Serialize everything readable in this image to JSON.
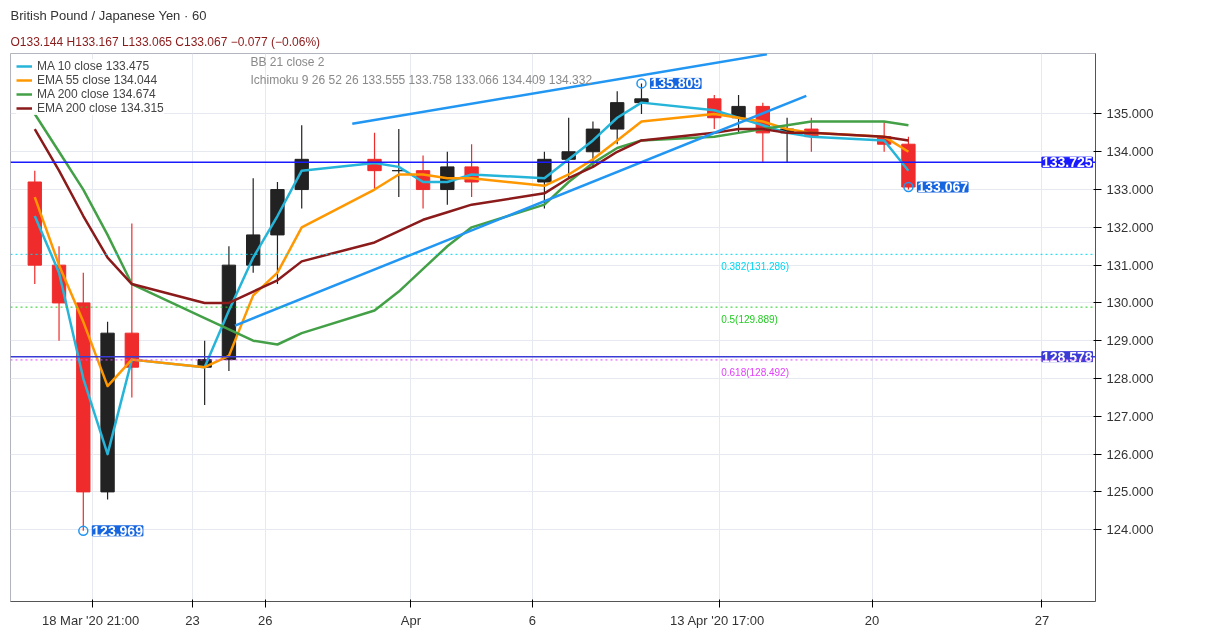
{
  "chart_data": {
    "type": "candlestick",
    "title": "British Pound / Japanese Yen · 60",
    "subtitle": "O133.144 H133.167 L133.065 C133.067 −0.077 (−0.06%)",
    "x": [
      "2020-03-16T12:00",
      "2020-03-17T12:00",
      "2020-03-18T12:00",
      "2020-03-19T12:00",
      "2020-03-20T12:00",
      "2020-03-23T12:00",
      "2020-03-24T12:00",
      "2020-03-25T12:00",
      "2020-03-26T12:00",
      "2020-03-27T12:00",
      "2020-03-30T12:00",
      "2020-03-31T12:00",
      "2020-04-01T12:00",
      "2020-04-02T12:00",
      "2020-04-03T12:00",
      "2020-04-06T12:00",
      "2020-04-07T12:00",
      "2020-04-08T12:00",
      "2020-04-09T12:00",
      "2020-04-10T12:00",
      "2020-04-13T12:00",
      "2020-04-14T12:00",
      "2020-04-15T12:00",
      "2020-04-16T12:00",
      "2020-04-17T12:00",
      "2020-04-20T12:00",
      "2020-04-21T12:00"
    ],
    "ohlc": [
      [
        133.2,
        133.5,
        130.5,
        131.0
      ],
      [
        131.0,
        131.5,
        129.0,
        130.0
      ],
      [
        130.0,
        130.8,
        123.969,
        125.0
      ],
      [
        125.0,
        129.5,
        124.8,
        129.2
      ],
      [
        129.2,
        132.1,
        127.5,
        128.3
      ],
      [
        128.3,
        129.0,
        127.3,
        128.5
      ],
      [
        128.5,
        131.5,
        128.2,
        131.0
      ],
      [
        131.0,
        133.3,
        130.8,
        131.8
      ],
      [
        131.8,
        133.2,
        130.5,
        133.0
      ],
      [
        133.0,
        134.7,
        132.5,
        133.8
      ],
      [
        133.8,
        134.5,
        133.0,
        133.5
      ],
      [
        133.5,
        134.6,
        132.8,
        133.5
      ],
      [
        133.5,
        133.9,
        132.5,
        133.0
      ],
      [
        133.0,
        134.0,
        132.6,
        133.6
      ],
      [
        133.6,
        134.2,
        132.8,
        133.2
      ],
      [
        133.2,
        134.0,
        132.5,
        133.8
      ],
      [
        133.8,
        134.9,
        133.3,
        134.0
      ],
      [
        134.0,
        134.8,
        133.6,
        134.6
      ],
      [
        134.6,
        135.6,
        134.2,
        135.3
      ],
      [
        135.3,
        135.809,
        135.0,
        135.4
      ],
      [
        135.4,
        135.5,
        134.6,
        134.9
      ],
      [
        134.9,
        135.5,
        134.5,
        135.2
      ],
      [
        135.2,
        135.3,
        133.7,
        134.5
      ],
      [
        134.5,
        134.9,
        133.7,
        134.6
      ],
      [
        134.6,
        134.9,
        134.0,
        134.4
      ],
      [
        134.4,
        134.8,
        134.0,
        134.2
      ],
      [
        134.2,
        134.4,
        133.0,
        133.067
      ]
    ],
    "colors": [
      "#ef2b2b",
      "#ef2b2b",
      "#ef2b2b",
      "#222222",
      "#ef2b2b",
      "#222222",
      "#222222",
      "#222222",
      "#222222",
      "#222222",
      "#ef2b2b",
      "#222222",
      "#ef2b2b",
      "#222222",
      "#ef2b2b",
      "#222222",
      "#222222",
      "#222222",
      "#222222",
      "#222222",
      "#ef2b2b",
      "#222222",
      "#ef2b2b",
      "#222222",
      "#ef2b2b",
      "#ef2b2b",
      "#ef2b2b"
    ],
    "series": [
      {
        "type": "line",
        "name": "MA 10 close 133.475",
        "color": "#26b5d9",
        "values": [
          132.3,
          130.8,
          128.0,
          126.0,
          128.5,
          128.3,
          129.8,
          131.2,
          132.3,
          133.5,
          133.7,
          133.6,
          133.2,
          133.2,
          133.4,
          133.3,
          133.8,
          134.3,
          134.9,
          135.3,
          135.1,
          134.9,
          134.7,
          134.5,
          134.4,
          134.3,
          133.5
        ]
      },
      {
        "type": "line",
        "name": "EMA 55 close 134.044",
        "color": "#ff9800",
        "values": [
          132.8,
          131.0,
          129.5,
          127.8,
          128.5,
          128.3,
          128.6,
          130.2,
          130.8,
          132.0,
          133.0,
          133.4,
          133.4,
          133.3,
          133.3,
          133.1,
          133.4,
          133.8,
          134.3,
          134.8,
          135.0,
          134.9,
          134.8,
          134.6,
          134.5,
          134.4,
          134.0
        ]
      },
      {
        "type": "line",
        "name": "MA 200 close 134.674",
        "color": "#43a047",
        "values": [
          135.0,
          134.0,
          133.0,
          131.8,
          130.5,
          129.6,
          129.3,
          129.0,
          128.9,
          129.2,
          129.8,
          130.3,
          130.9,
          131.5,
          132.0,
          132.6,
          133.2,
          133.7,
          134.1,
          134.3,
          134.4,
          134.5,
          134.6,
          134.7,
          134.8,
          134.8,
          134.7
        ]
      },
      {
        "type": "line",
        "name": "EMA 200 close 134.315",
        "color": "#8b1a1a",
        "values": [
          134.6,
          133.5,
          132.3,
          131.2,
          130.5,
          130.0,
          130.0,
          130.3,
          130.6,
          131.1,
          131.6,
          131.9,
          132.2,
          132.4,
          132.6,
          132.9,
          133.3,
          133.6,
          134.0,
          134.3,
          134.5,
          134.6,
          134.6,
          134.5,
          134.5,
          134.4,
          134.3
        ]
      },
      {
        "type": "line",
        "color": "#2196f3",
        "x": [
          "2020-03-29T14:00",
          "2020-04-15T16:00"
        ],
        "values": [
          134.74,
          136.58
        ]
      },
      {
        "type": "line",
        "color": "#2196f3",
        "x": [
          "2020-03-24T18:00",
          "2020-04-17T07:00"
        ],
        "values": [
          129.4,
          135.48
        ]
      }
    ],
    "ref_lines": [
      {
        "axis": "y",
        "value": 133.725,
        "label": "133.725",
        "color": "#1a1aff",
        "line_style": "solid"
      },
      {
        "axis": "y",
        "value": 128.578,
        "label": "128.578",
        "color": "#3b3bd6",
        "line_style": "solid"
      },
      {
        "axis": "y",
        "value": 131.286,
        "label": "0.382(131.286)",
        "color": "#00d5f0",
        "line_style": "dotted"
      },
      {
        "axis": "y",
        "value": 129.889,
        "label": "0.5(129.889)",
        "color": "#22cc22",
        "line_style": "dotted"
      },
      {
        "axis": "y",
        "value": 128.492,
        "label": "0.618(128.492)",
        "color": "#e040fb",
        "line_style": "dotted"
      }
    ],
    "annotations": [
      "BB 21 close 2",
      "Ichimoku 9 26 52 26 133.555 133.758 133.066 134.409 134.332",
      {
        "text": "135.809",
        "x": "2020-04-10T12:00",
        "y": 135.809
      },
      {
        "text": "133.067",
        "x": "2020-04-21T12:00",
        "y": 133.067
      },
      {
        "text": "123.969",
        "x": "2020-03-18T12:00",
        "y": 123.969
      }
    ],
    "xlim": [
      "2020-03-15T12:00",
      "2020-04-29T05:00"
    ],
    "xticks": [
      {
        "value": "2020-03-18T21:00",
        "label": "18 Mar '20  21:00"
      },
      {
        "value": "2020-03-23",
        "label": "23"
      },
      {
        "value": "2020-03-26",
        "label": "26"
      },
      {
        "value": "2020-04-01",
        "label": "Apr"
      },
      {
        "value": "2020-04-06",
        "label": "6"
      },
      {
        "value": "2020-04-13T17:00",
        "label": "13 Apr '20  17:00"
      },
      {
        "value": "2020-04-20",
        "label": "20"
      },
      {
        "value": "2020-04-27",
        "label": "27"
      }
    ],
    "ylim": [
      122.1,
      136.6
    ],
    "yticks": [
      {
        "value": 124,
        "label": "124.000"
      },
      {
        "value": 125,
        "label": "125.000"
      },
      {
        "value": 126,
        "label": "126.000"
      },
      {
        "value": 127,
        "label": "127.000"
      },
      {
        "value": 128,
        "label": "128.000"
      },
      {
        "value": 129,
        "label": "129.000"
      },
      {
        "value": 130,
        "label": "130.000"
      },
      {
        "value": 131,
        "label": "131.000"
      },
      {
        "value": 132,
        "label": "132.000"
      },
      {
        "value": 133,
        "label": "133.000"
      },
      {
        "value": 134,
        "label": "134.000"
      },
      {
        "value": 135,
        "label": "135.000"
      }
    ],
    "grid": true,
    "legend": "top left"
  }
}
